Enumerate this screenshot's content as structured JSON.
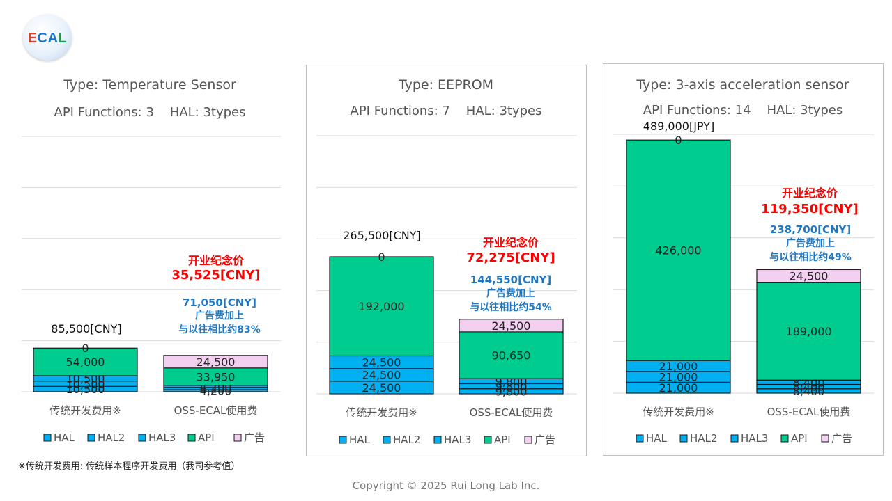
{
  "logo": {
    "text": "ECAL"
  },
  "colors": {
    "HAL": "#00b0f0",
    "HAL2": "#00b0f0",
    "HAL3": "#00b0f0",
    "API": "#00cc8f",
    "广告": "#f3cff0",
    "promo": "#ff0000",
    "discount": "#1f78c1"
  },
  "legend_labels": [
    "HAL",
    "HAL2",
    "HAL3",
    "API",
    "广告"
  ],
  "chart_data": [
    {
      "type": "bar",
      "stacked": true,
      "title": "Type: Temperature Sensor",
      "subtitle": "API Functions: 3    HAL: 3types",
      "categories": [
        "传统开发费用※",
        "OSS-ECAL使用费"
      ],
      "series": [
        {
          "name": "HAL",
          "values": [
            10500,
            4200
          ]
        },
        {
          "name": "HAL2",
          "values": [
            10500,
            4200
          ]
        },
        {
          "name": "HAL3",
          "values": [
            10500,
            4200
          ]
        },
        {
          "name": "API",
          "values": [
            54000,
            33950
          ]
        },
        {
          "name": "广告",
          "values": [
            0,
            24500
          ]
        }
      ],
      "total_label": "85,500[CNY]",
      "promo_title": "开业纪念价",
      "promo_price": "35,525[CNY]",
      "discount_lines": [
        "71,050[CNY]",
        "广告费加上",
        "与以往相比约83%"
      ],
      "ylim": [
        0,
        500000
      ],
      "grid": true,
      "legend": "bottom"
    },
    {
      "type": "bar",
      "stacked": true,
      "title": "Type: EEPROM",
      "subtitle": "API Functions: 7    HAL: 3types",
      "categories": [
        "传统开发费用※",
        "OSS-ECAL使用费"
      ],
      "series": [
        {
          "name": "HAL",
          "values": [
            24500,
            9800
          ]
        },
        {
          "name": "HAL2",
          "values": [
            24500,
            9800
          ]
        },
        {
          "name": "HAL3",
          "values": [
            24500,
            9800
          ]
        },
        {
          "name": "API",
          "values": [
            192000,
            90650
          ]
        },
        {
          "name": "广告",
          "values": [
            0,
            24500
          ]
        }
      ],
      "total_label": "265,500[CNY]",
      "promo_title": "开业纪念价",
      "promo_price": "72,275[CNY]",
      "discount_lines": [
        "144,550[CNY]",
        "广告费加上",
        "与以往相比约54%"
      ],
      "ylim": [
        0,
        500000
      ],
      "grid": true,
      "legend": "bottom"
    },
    {
      "type": "bar",
      "stacked": true,
      "title": "Type: 3-axis acceleration sensor",
      "subtitle": "API Functions: 14    HAL: 3types",
      "categories": [
        "传统开发费用※",
        "OSS-ECAL使用费"
      ],
      "series": [
        {
          "name": "HAL",
          "values": [
            21000,
            8400
          ]
        },
        {
          "name": "HAL2",
          "values": [
            21000,
            8400
          ]
        },
        {
          "name": "HAL3",
          "values": [
            21000,
            8400
          ]
        },
        {
          "name": "API",
          "values": [
            426000,
            189000
          ]
        },
        {
          "name": "广告",
          "values": [
            0,
            24500
          ]
        }
      ],
      "total_label": "489,000[JPY]",
      "promo_title": "开业纪念价",
      "promo_price": "119,350[CNY]",
      "discount_lines": [
        "238,700[CNY]",
        "广告费加上",
        "与以往相比约49%"
      ],
      "ylim": [
        0,
        500000
      ],
      "grid": true,
      "legend": "bottom"
    }
  ],
  "footnote": "※传统开发费用: 传统样本程序开发费用（我司参考值）",
  "copyright": "Copyright © 2025 Rui Long Lab Inc."
}
